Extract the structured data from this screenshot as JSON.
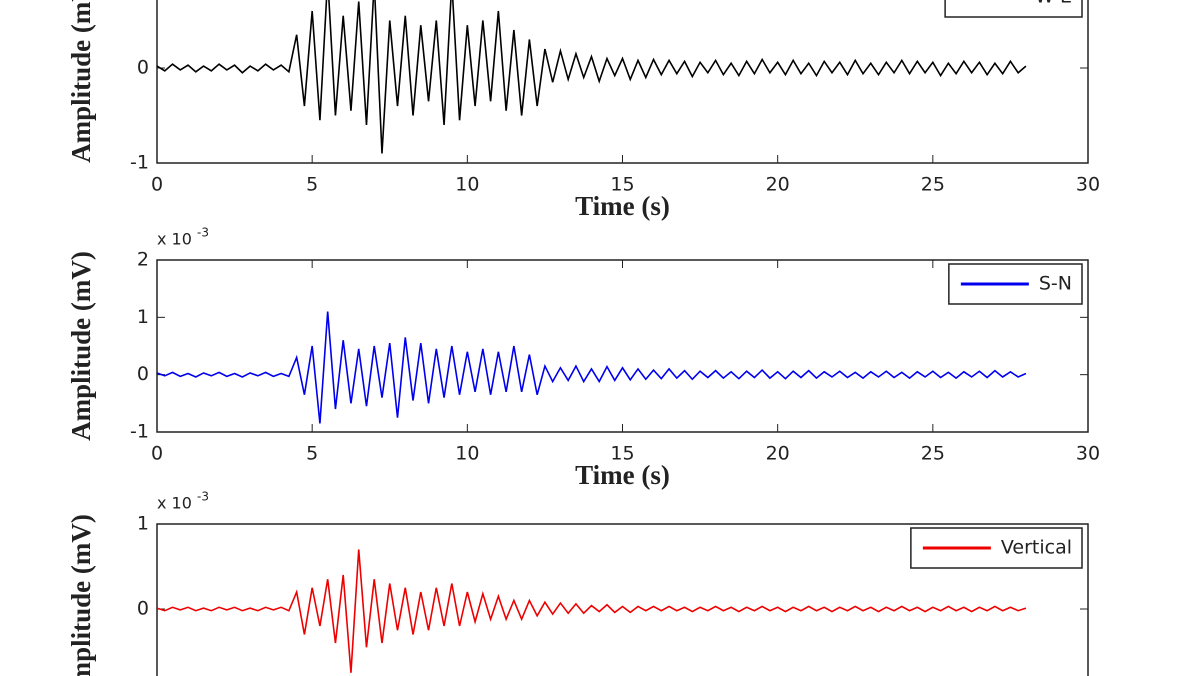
{
  "chart_data": [
    {
      "type": "line",
      "xlabel": "Time (s)",
      "ylabel": "Amplitude (mV)",
      "legend": "upper right",
      "xlim": [
        0,
        30
      ],
      "xticks": [
        0,
        5,
        10,
        15,
        20,
        25,
        30
      ],
      "ylim": [
        -1,
        1
      ],
      "yticks": [
        -1,
        0
      ],
      "x": [
        0,
        0.25,
        0.5,
        0.75,
        1,
        1.25,
        1.5,
        1.75,
        2,
        2.25,
        2.5,
        2.75,
        3,
        3.25,
        3.5,
        3.75,
        4,
        4.25,
        4.5,
        4.75,
        5,
        5.25,
        5.5,
        5.75,
        6,
        6.25,
        6.5,
        6.75,
        7,
        7.25,
        7.5,
        7.75,
        8,
        8.25,
        8.5,
        8.75,
        9,
        9.25,
        9.5,
        9.75,
        10,
        10.25,
        10.5,
        10.75,
        11,
        11.25,
        11.5,
        11.75,
        12,
        12.25,
        12.5,
        12.75,
        13,
        13.25,
        13.5,
        13.75,
        14,
        14.25,
        14.5,
        14.75,
        15,
        15.25,
        15.5,
        15.75,
        16,
        16.25,
        16.5,
        16.75,
        17,
        17.25,
        17.5,
        17.75,
        18,
        18.25,
        18.5,
        18.75,
        19,
        19.25,
        19.5,
        19.75,
        20,
        20.25,
        20.5,
        20.75,
        21,
        21.25,
        21.5,
        21.75,
        22,
        22.25,
        22.5,
        22.75,
        23,
        23.25,
        23.5,
        23.75,
        24,
        24.25,
        24.5,
        24.75,
        25,
        25.25,
        25.5,
        25.75,
        26,
        26.25,
        26.5,
        26.75,
        27,
        27.25,
        27.5,
        27.75,
        28
      ],
      "series": [
        {
          "name": "W-E",
          "color": "#000000",
          "values": [
            0.02,
            -0.03,
            0.04,
            -0.02,
            0.03,
            -0.04,
            0.02,
            -0.03,
            0.04,
            -0.02,
            0.03,
            -0.05,
            0.02,
            -0.03,
            0.04,
            -0.02,
            0.03,
            -0.04,
            0.35,
            -0.4,
            0.6,
            -0.55,
            0.95,
            -0.5,
            0.55,
            -0.45,
            0.7,
            -0.6,
            0.9,
            -0.9,
            0.5,
            -0.4,
            0.55,
            -0.5,
            0.45,
            -0.35,
            0.5,
            -0.6,
            0.9,
            -0.55,
            0.45,
            -0.4,
            0.5,
            -0.35,
            0.6,
            -0.45,
            0.4,
            -0.5,
            0.3,
            -0.4,
            0.2,
            -0.15,
            0.18,
            -0.12,
            0.15,
            -0.1,
            0.12,
            -0.14,
            0.1,
            -0.08,
            0.1,
            -0.12,
            0.08,
            -0.1,
            0.09,
            -0.07,
            0.08,
            -0.06,
            0.07,
            -0.09,
            0.06,
            -0.05,
            0.08,
            -0.07,
            0.05,
            -0.08,
            0.07,
            -0.06,
            0.09,
            -0.05,
            0.06,
            -0.07,
            0.08,
            -0.06,
            0.05,
            -0.08,
            0.07,
            -0.05,
            0.06,
            -0.07,
            0.08,
            -0.06,
            0.05,
            -0.07,
            0.06,
            -0.05,
            0.08,
            -0.06,
            0.07,
            -0.05,
            0.06,
            -0.08,
            0.05,
            -0.06,
            0.07,
            -0.05,
            0.06,
            -0.07,
            0.05,
            -0.06,
            0.07,
            -0.05,
            0.02
          ]
        }
      ]
    },
    {
      "type": "line",
      "xlabel": "Time (s)",
      "ylabel": "Amplitude (mV)",
      "legend": "upper right",
      "y_multiplier": "x 10",
      "y_multiplier_exponent": "-3",
      "xlim": [
        0,
        30
      ],
      "xticks": [
        0,
        5,
        10,
        15,
        20,
        25,
        30
      ],
      "ylim": [
        -1,
        2
      ],
      "yticks": [
        -1,
        0,
        1,
        2
      ],
      "x": [
        0,
        0.25,
        0.5,
        0.75,
        1,
        1.25,
        1.5,
        1.75,
        2,
        2.25,
        2.5,
        2.75,
        3,
        3.25,
        3.5,
        3.75,
        4,
        4.25,
        4.5,
        4.75,
        5,
        5.25,
        5.5,
        5.75,
        6,
        6.25,
        6.5,
        6.75,
        7,
        7.25,
        7.5,
        7.75,
        8,
        8.25,
        8.5,
        8.75,
        9,
        9.25,
        9.5,
        9.75,
        10,
        10.25,
        10.5,
        10.75,
        11,
        11.25,
        11.5,
        11.75,
        12,
        12.25,
        12.5,
        12.75,
        13,
        13.25,
        13.5,
        13.75,
        14,
        14.25,
        14.5,
        14.75,
        15,
        15.25,
        15.5,
        15.75,
        16,
        16.25,
        16.5,
        16.75,
        17,
        17.25,
        17.5,
        17.75,
        18,
        18.25,
        18.5,
        18.75,
        19,
        19.25,
        19.5,
        19.75,
        20,
        20.25,
        20.5,
        20.75,
        21,
        21.25,
        21.5,
        21.75,
        22,
        22.25,
        22.5,
        22.75,
        23,
        23.25,
        23.5,
        23.75,
        24,
        24.25,
        24.5,
        24.75,
        25,
        25.25,
        25.5,
        25.75,
        26,
        26.25,
        26.5,
        26.75,
        27,
        27.25,
        27.5,
        27.75,
        28
      ],
      "series": [
        {
          "name": "S-N",
          "color": "#0000ee",
          "values": [
            0.03,
            -0.02,
            0.04,
            -0.03,
            0.02,
            -0.04,
            0.03,
            -0.02,
            0.04,
            -0.03,
            0.02,
            -0.04,
            0.03,
            -0.02,
            0.04,
            -0.03,
            0.02,
            -0.03,
            0.3,
            -0.35,
            0.5,
            -0.85,
            1.1,
            -0.6,
            0.6,
            -0.5,
            0.45,
            -0.55,
            0.5,
            -0.4,
            0.55,
            -0.75,
            0.65,
            -0.45,
            0.55,
            -0.5,
            0.45,
            -0.4,
            0.5,
            -0.35,
            0.4,
            -0.3,
            0.45,
            -0.35,
            0.4,
            -0.3,
            0.5,
            -0.3,
            0.35,
            -0.35,
            0.15,
            -0.12,
            0.12,
            -0.1,
            0.15,
            -0.12,
            0.1,
            -0.12,
            0.14,
            -0.1,
            0.12,
            -0.09,
            0.1,
            -0.08,
            0.08,
            -0.07,
            0.1,
            -0.06,
            0.07,
            -0.08,
            0.06,
            -0.05,
            0.07,
            -0.06,
            0.05,
            -0.07,
            0.06,
            -0.05,
            0.08,
            -0.06,
            0.05,
            -0.07,
            0.06,
            -0.05,
            0.07,
            -0.06,
            0.05,
            -0.04,
            0.06,
            -0.05,
            0.04,
            -0.06,
            0.05,
            -0.04,
            0.06,
            -0.05,
            0.04,
            -0.06,
            0.05,
            -0.04,
            0.06,
            -0.05,
            0.04,
            -0.06,
            0.05,
            -0.04,
            0.06,
            -0.05,
            0.07,
            -0.04,
            0.05,
            -0.04,
            0.02
          ]
        }
      ]
    },
    {
      "type": "line",
      "ylabel": "Amplitude (mV)",
      "legend": "upper right",
      "y_multiplier": "x 10",
      "y_multiplier_exponent": "-3",
      "xlim": [
        0,
        30
      ],
      "ylim": [
        -1,
        1
      ],
      "yticks": [
        0,
        1
      ],
      "x": [
        0,
        0.25,
        0.5,
        0.75,
        1,
        1.25,
        1.5,
        1.75,
        2,
        2.25,
        2.5,
        2.75,
        3,
        3.25,
        3.5,
        3.75,
        4,
        4.25,
        4.5,
        4.75,
        5,
        5.25,
        5.5,
        5.75,
        6,
        6.25,
        6.5,
        6.75,
        7,
        7.25,
        7.5,
        7.75,
        8,
        8.25,
        8.5,
        8.75,
        9,
        9.25,
        9.5,
        9.75,
        10,
        10.25,
        10.5,
        10.75,
        11,
        11.25,
        11.5,
        11.75,
        12,
        12.25,
        12.5,
        12.75,
        13,
        13.25,
        13.5,
        13.75,
        14,
        14.25,
        14.5,
        14.75,
        15,
        15.25,
        15.5,
        15.75,
        16,
        16.25,
        16.5,
        16.75,
        17,
        17.25,
        17.5,
        17.75,
        18,
        18.25,
        18.5,
        18.75,
        19,
        19.25,
        19.5,
        19.75,
        20,
        20.25,
        20.5,
        20.75,
        21,
        21.25,
        21.5,
        21.75,
        22,
        22.25,
        22.5,
        22.75,
        23,
        23.25,
        23.5,
        23.75,
        24,
        24.25,
        24.5,
        24.75,
        25,
        25.25,
        25.5,
        25.75,
        26,
        26.25,
        26.5,
        26.75,
        27,
        27.25,
        27.5,
        27.75,
        28
      ],
      "series": [
        {
          "name": "Vertical",
          "color": "#ee0000",
          "values": [
            0.01,
            -0.02,
            0.02,
            -0.01,
            0.02,
            -0.02,
            0.01,
            -0.02,
            0.02,
            -0.01,
            0.02,
            -0.02,
            0.01,
            -0.02,
            0.02,
            -0.01,
            0.02,
            -0.02,
            0.2,
            -0.3,
            0.25,
            -0.2,
            0.35,
            -0.4,
            0.4,
            -0.75,
            0.7,
            -0.45,
            0.35,
            -0.4,
            0.3,
            -0.25,
            0.25,
            -0.3,
            0.2,
            -0.25,
            0.25,
            -0.2,
            0.3,
            -0.2,
            0.2,
            -0.15,
            0.18,
            -0.12,
            0.15,
            -0.12,
            0.1,
            -0.12,
            0.1,
            -0.08,
            0.08,
            -0.06,
            0.07,
            -0.05,
            0.06,
            -0.05,
            0.04,
            -0.03,
            0.05,
            -0.04,
            0.03,
            -0.04,
            0.03,
            -0.02,
            0.03,
            -0.02,
            0.03,
            -0.02,
            0.02,
            -0.03,
            0.02,
            -0.02,
            0.03,
            -0.02,
            0.02,
            -0.03,
            0.02,
            -0.02,
            0.03,
            -0.02,
            0.02,
            -0.03,
            0.02,
            -0.02,
            0.03,
            -0.02,
            0.02,
            -0.03,
            0.02,
            -0.02,
            0.03,
            -0.02,
            0.02,
            -0.03,
            0.02,
            -0.02,
            0.03,
            -0.02,
            0.02,
            -0.03,
            0.02,
            -0.02,
            0.03,
            -0.02,
            0.02,
            -0.03,
            0.02,
            -0.02,
            0.03,
            -0.02,
            0.02,
            -0.02,
            0.01
          ]
        }
      ]
    }
  ]
}
